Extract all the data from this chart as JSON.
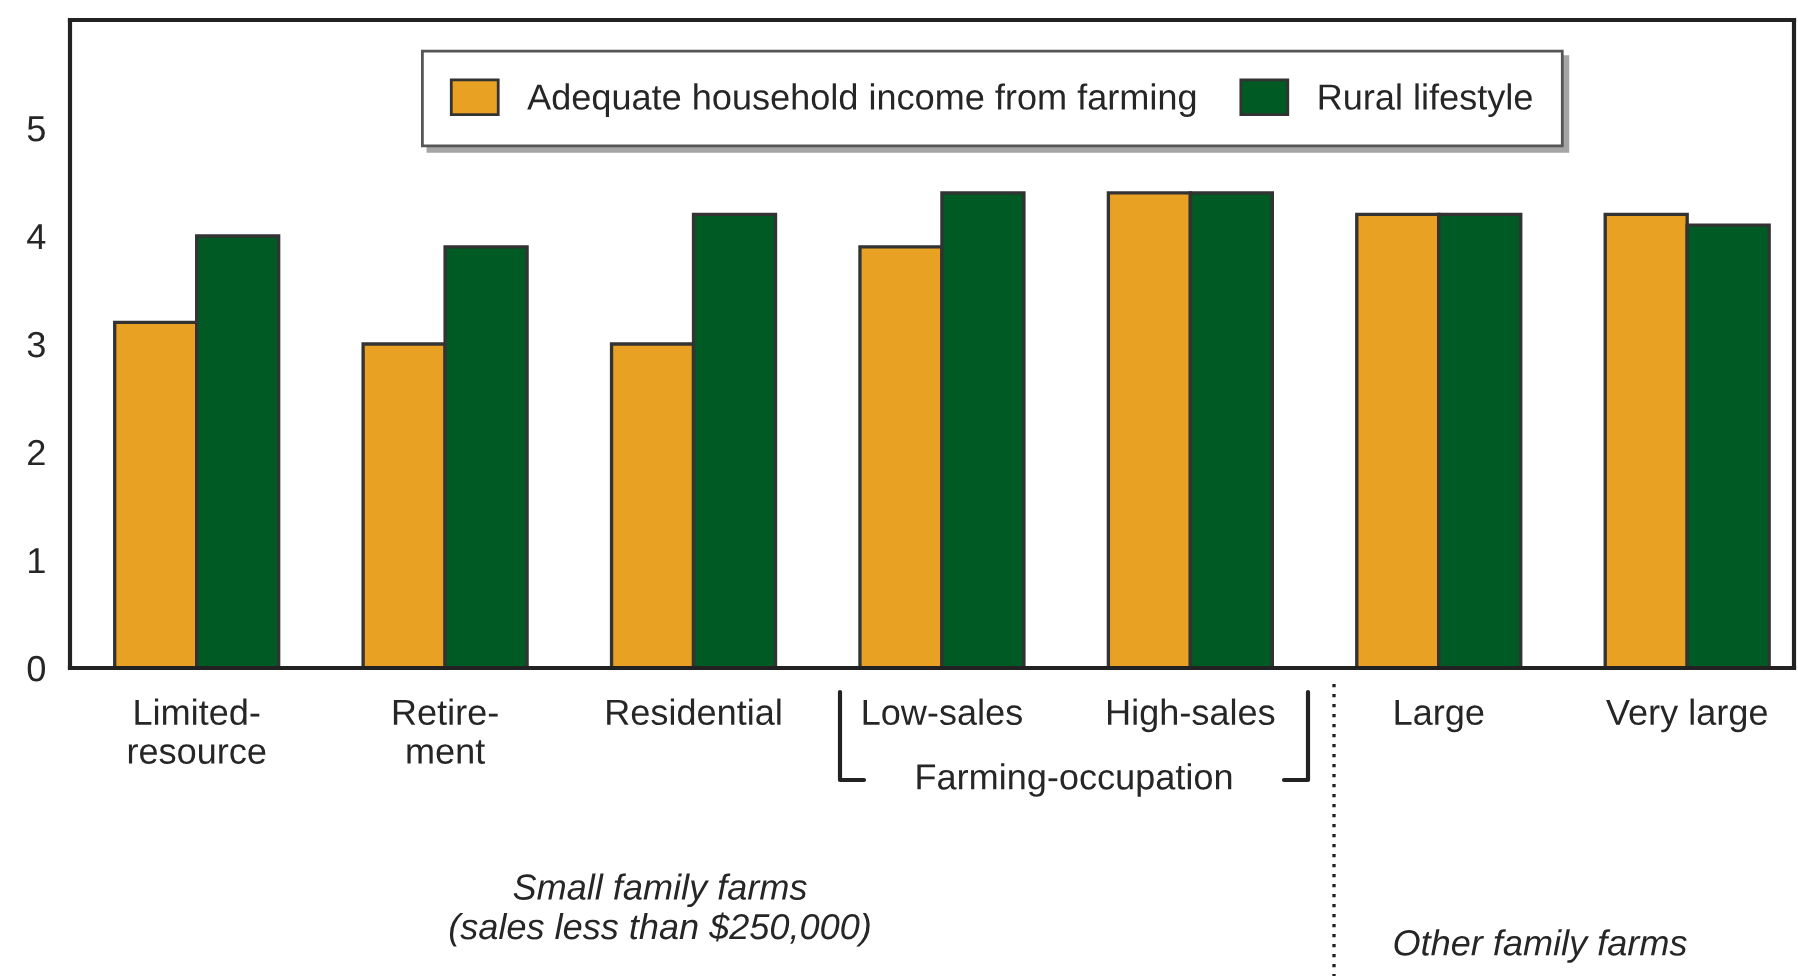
{
  "chart_data": {
    "type": "bar",
    "categories": [
      "Limited-\nresource",
      "Retire-\nment",
      "Residential",
      "Low-sales",
      "High-sales",
      "Large",
      "Very large"
    ],
    "series": [
      {
        "name": "Adequate household income from farming",
        "color": "#e8a123",
        "values": [
          3.2,
          3.0,
          3.0,
          3.9,
          4.4,
          4.2,
          4.2
        ]
      },
      {
        "name": "Rural lifestyle",
        "color": "#005a24",
        "values": [
          4.0,
          3.9,
          4.2,
          4.4,
          4.4,
          4.2,
          4.1
        ]
      }
    ],
    "ylim": [
      0,
      6
    ],
    "yticks": [
      0,
      1,
      2,
      3,
      4,
      5
    ],
    "grid": false,
    "legend": "top",
    "annotations": [
      "Farming-occupation",
      "Small family farms\n(sales less than $250,000)",
      "Other family farms"
    ]
  }
}
